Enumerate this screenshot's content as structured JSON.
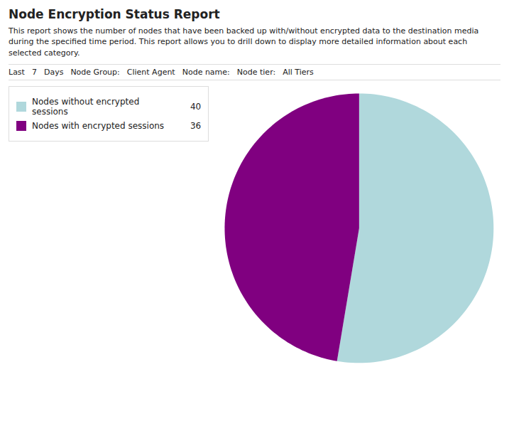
{
  "chart_data": {
    "type": "pie",
    "title": "Node Encryption Status Report",
    "subtitle": "This report shows the number of nodes that have been backed up with/without encrypted data to the destination media\nduring the specified time period. This report allows you to drill down to display more detailed information about each\nselected category.",
    "annotations": [
      "Last",
      "7",
      "Days",
      "Node Group:",
      "Client Agent",
      "Node name:",
      "Node tier:",
      "All Tiers"
    ],
    "categories": [
      "Nodes without encrypted sessions",
      "Nodes with encrypted sessions"
    ],
    "values": [
      40,
      36
    ],
    "colors": [
      "#B0D8DC",
      "#800080"
    ],
    "legend": "top-left"
  }
}
